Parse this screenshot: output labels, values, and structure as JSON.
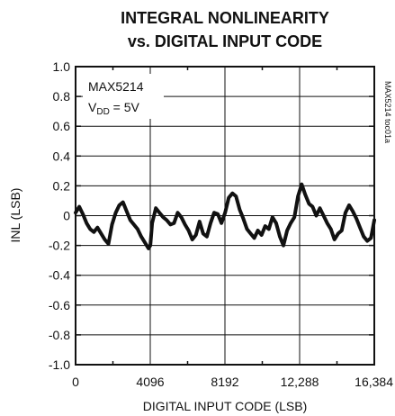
{
  "chart_data": {
    "type": "line",
    "title": "INTEGRAL NONLINEARITY",
    "subtitle": "vs. DIGITAL INPUT CODE",
    "xlabel": "DIGITAL INPUT CODE (LSB)",
    "ylabel": "INL (LSB)",
    "xlim": [
      0,
      16384
    ],
    "ylim": [
      -1.0,
      1.0
    ],
    "x_ticks": [
      0,
      4096,
      8192,
      12288,
      16384
    ],
    "x_tick_labels": [
      "0",
      "4096",
      "8192",
      "12,288",
      "16,384"
    ],
    "y_ticks": [
      1.0,
      0.8,
      0.6,
      0.4,
      0.2,
      0,
      -0.2,
      -0.4,
      -0.6,
      -0.8,
      -1.0
    ],
    "y_tick_labels": [
      "1.0",
      "0.8",
      "0.6",
      "0.4",
      "0.2",
      "0",
      "-0.2",
      "-0.4",
      "-0.6",
      "-0.8",
      "-1.0"
    ],
    "grid": true,
    "legend": "none",
    "annotation": {
      "part": "MAX5214",
      "supply_main": "V",
      "supply_sub": "DD",
      "supply_value": " = 5V"
    },
    "side_label": "MAX5214 toc01a",
    "line_color": "#111111",
    "series": [
      {
        "x": [
          0,
          200,
          400,
          600,
          800,
          1000,
          1200,
          1400,
          1600,
          1800,
          2000,
          2200,
          2400,
          2600,
          2800,
          3000,
          3200,
          3400,
          3600,
          3800,
          4000,
          4100,
          4200,
          4400,
          4600,
          4800,
          5000,
          5200,
          5400,
          5600,
          5800,
          6000,
          6200,
          6400,
          6600,
          6800,
          7000,
          7200,
          7400,
          7600,
          7800,
          8000,
          8200,
          8400,
          8600,
          8800,
          9000,
          9200,
          9400,
          9600,
          9800,
          10000,
          10200,
          10400,
          10600,
          10800,
          11000,
          11200,
          11400,
          11600,
          11800,
          12000,
          12200,
          12400,
          12600,
          12800,
          13000,
          13200,
          13400,
          13600,
          13800,
          14000,
          14200,
          14400,
          14600,
          14800,
          15000,
          15200,
          15400,
          15600,
          15800,
          16000,
          16200,
          16384
        ],
        "y": [
          0.02,
          0.06,
          0.01,
          -0.05,
          -0.09,
          -0.11,
          -0.08,
          -0.12,
          -0.16,
          -0.19,
          -0.06,
          0.02,
          0.07,
          0.09,
          0.03,
          -0.03,
          -0.06,
          -0.09,
          -0.14,
          -0.18,
          -0.22,
          -0.2,
          -0.05,
          0.05,
          0.02,
          -0.01,
          -0.03,
          -0.06,
          -0.05,
          0.02,
          -0.01,
          -0.06,
          -0.1,
          -0.16,
          -0.13,
          -0.04,
          -0.12,
          -0.14,
          -0.05,
          0.02,
          0.01,
          -0.05,
          0.02,
          0.12,
          0.15,
          0.13,
          0.04,
          -0.02,
          -0.09,
          -0.12,
          -0.15,
          -0.1,
          -0.13,
          -0.07,
          -0.09,
          -0.01,
          -0.05,
          -0.14,
          -0.2,
          -0.1,
          -0.05,
          -0.01,
          0.13,
          0.21,
          0.14,
          0.08,
          0.06,
          0.0,
          0.05,
          0.0,
          -0.05,
          -0.09,
          -0.16,
          -0.12,
          -0.1,
          0.02,
          0.07,
          0.03,
          -0.02,
          -0.08,
          -0.14,
          -0.17,
          -0.15,
          -0.03
        ]
      }
    ]
  }
}
